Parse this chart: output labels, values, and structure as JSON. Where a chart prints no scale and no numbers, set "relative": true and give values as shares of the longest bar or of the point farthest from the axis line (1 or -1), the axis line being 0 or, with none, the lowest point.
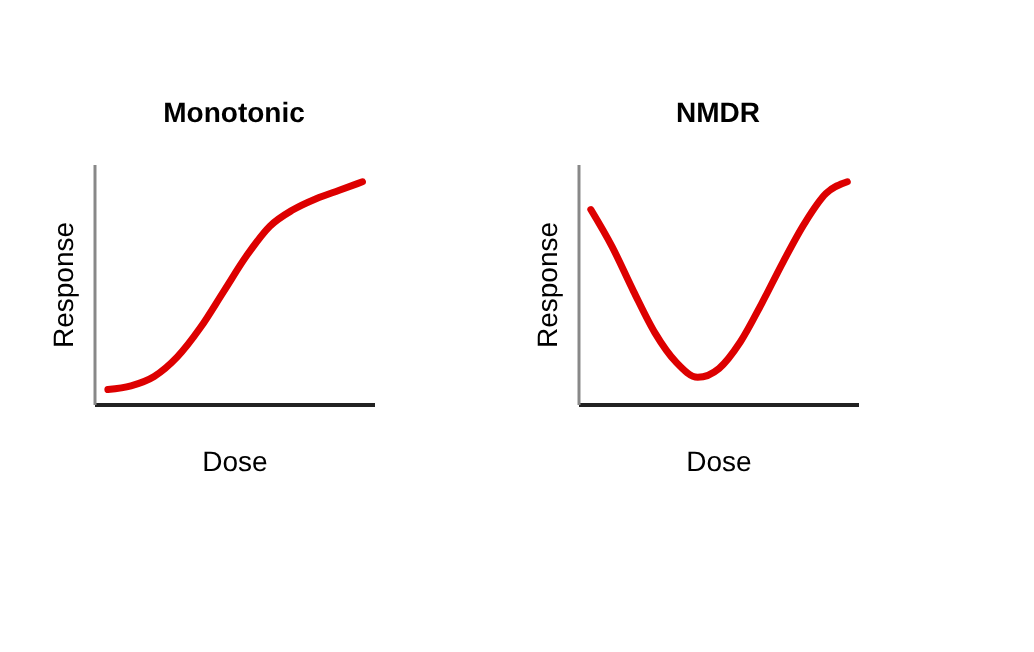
{
  "chart_data": [
    {
      "type": "line",
      "title": "Monotonic",
      "xlabel": "Dose",
      "ylabel": "Response",
      "relative": true,
      "tick_labels": false,
      "categories": [
        null,
        null,
        null,
        null,
        null,
        null,
        null,
        null,
        null,
        null,
        null,
        null
      ],
      "series": [
        {
          "color": "#dd0000",
          "values": [
            0.065,
            0.082,
            0.124,
            0.212,
            0.344,
            0.506,
            0.668,
            0.8,
            0.874,
            0.924,
            0.962,
            1.0
          ]
        }
      ]
    },
    {
      "type": "line",
      "title": "NMDR",
      "xlabel": "Dose",
      "ylabel": "Response",
      "relative": true,
      "tick_labels": false,
      "categories": [
        null,
        null,
        null,
        null,
        null,
        null,
        null,
        null,
        null,
        null,
        null,
        null,
        null
      ],
      "series": [
        {
          "color": "#dd0000",
          "values": [
            0.875,
            0.707,
            0.507,
            0.32,
            0.187,
            0.12,
            0.16,
            0.28,
            0.453,
            0.64,
            0.813,
            0.947,
            1.0
          ]
        }
      ]
    }
  ]
}
